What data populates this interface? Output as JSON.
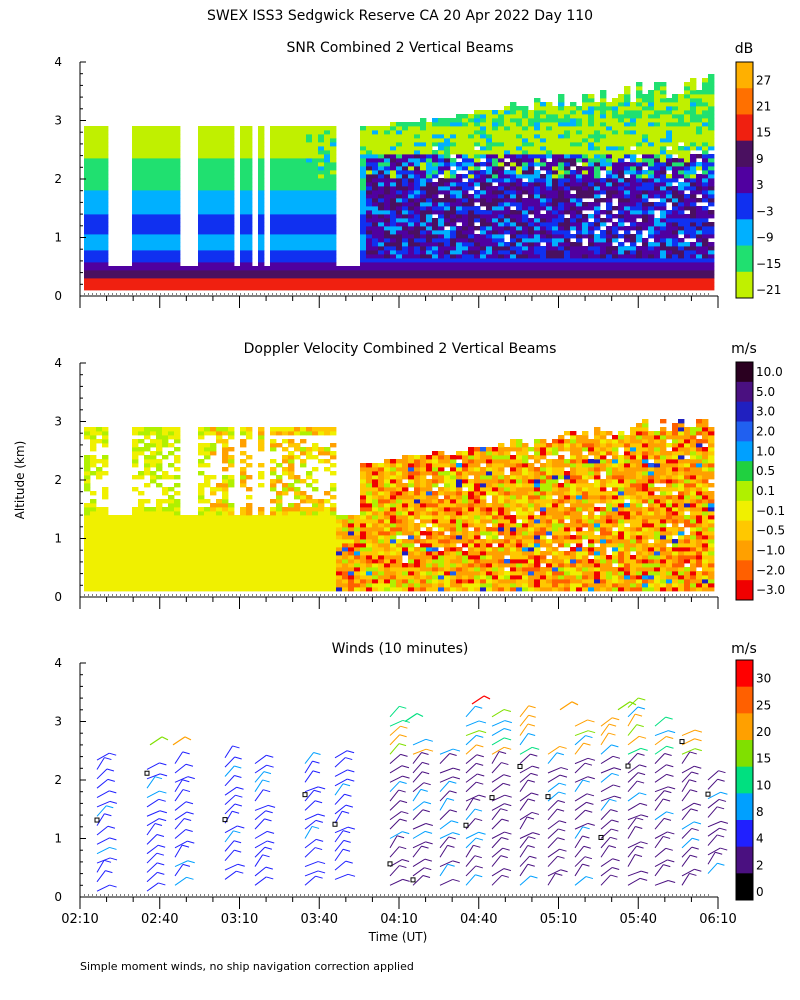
{
  "figure": {
    "title": "SWEX ISS3 Sedgwick Reserve CA  20 Apr 2022 Day 110",
    "ylabel": "Altitude (km)",
    "xlabel": "Time (UT)",
    "footnote": "Simple moment winds, no ship navigation correction applied"
  },
  "chart_data": [
    {
      "type": "heatmap",
      "title": "SNR Combined 2 Vertical Beams",
      "x_ticks": [
        "02:10",
        "02:40",
        "03:10",
        "03:40",
        "04:10",
        "04:40",
        "05:10",
        "05:40",
        "06:10"
      ],
      "y_ticks": [
        0,
        1,
        2,
        3,
        4
      ],
      "ylim": [
        0,
        4
      ],
      "colorbar": {
        "unit": "dB",
        "tick_labels": [
          "27",
          "21",
          "15",
          "9",
          "3",
          "−3",
          "−9",
          "−15",
          "−21"
        ],
        "colors": [
          "#ffb000",
          "#ff7000",
          "#f02010",
          "#4a1060",
          "#5000a0",
          "#1030f0",
          "#00b0ff",
          "#20e070",
          "#c0f000"
        ]
      }
    },
    {
      "type": "heatmap",
      "title": "Doppler Velocity Combined 2 Vertical Beams",
      "x_ticks": [
        "02:10",
        "02:40",
        "03:10",
        "03:40",
        "04:10",
        "04:40",
        "05:10",
        "05:40",
        "06:10"
      ],
      "y_ticks": [
        0,
        1,
        2,
        3,
        4
      ],
      "ylim": [
        0,
        4
      ],
      "colorbar": {
        "unit": "m/s",
        "tick_labels": [
          "10.0",
          "5.0",
          "3.0",
          "2.0",
          "1.0",
          "0.5",
          "0.1",
          "−0.1",
          "−0.5",
          "−1.0",
          "−2.0",
          "−3.0"
        ],
        "colors": [
          "#2a0020",
          "#4a1080",
          "#2020c0",
          "#2060f0",
          "#00a0ff",
          "#20d040",
          "#b0f000",
          "#f0f000",
          "#ffc800",
          "#ffa000",
          "#ff6000",
          "#f00000"
        ]
      }
    },
    {
      "type": "scatter",
      "title": "Winds (10 minutes)",
      "x_ticks": [
        "02:10",
        "02:40",
        "03:10",
        "03:40",
        "04:10",
        "04:40",
        "05:10",
        "05:40",
        "06:10"
      ],
      "y_ticks": [
        0,
        1,
        2,
        3,
        4
      ],
      "ylim": [
        0,
        4
      ],
      "colorbar": {
        "unit": "m/s",
        "tick_labels": [
          "30",
          "25",
          "20",
          "15",
          "10",
          "8",
          "4",
          "2",
          "0"
        ],
        "colors": [
          "#ff0000",
          "#ff6000",
          "#ffa000",
          "#80e000",
          "#00e080",
          "#00a0ff",
          "#2020ff",
          "#4a1080",
          "#000000"
        ]
      }
    }
  ]
}
